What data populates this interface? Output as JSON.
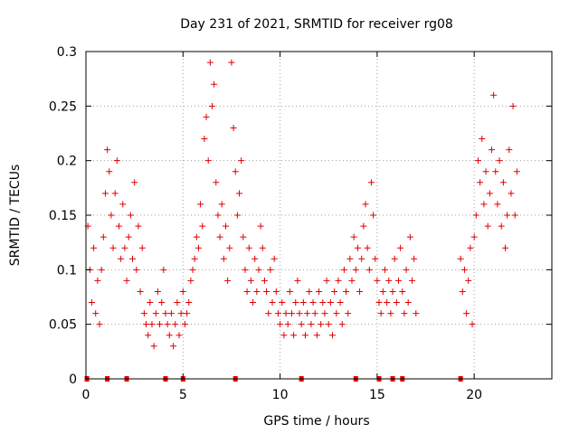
{
  "chart_data": {
    "type": "scatter",
    "title": "Day 231 of 2021, SRMTID for receiver rg08",
    "xlabel": "GPS time / hours",
    "ylabel": "SRMTID / TECUs",
    "xlim": [
      0,
      24
    ],
    "ylim": [
      0,
      0.3
    ],
    "xticks": [
      0,
      5,
      10,
      15,
      20
    ],
    "xtick_labels": [
      "0",
      "5",
      "10",
      "15",
      "20"
    ],
    "yticks": [
      0,
      0.05,
      0.1,
      0.15,
      0.2,
      0.25,
      0.3
    ],
    "ytick_labels": [
      "0",
      "0.05",
      "0.1",
      "0.15",
      "0.2",
      "0.25",
      "0.3"
    ],
    "grid": true,
    "marker": "+",
    "color": "#e00000",
    "baseline_markers_x": [
      0.05,
      1.1,
      2.1,
      4.1,
      5.0,
      7.7,
      11.1,
      13.9,
      15.1,
      15.8,
      16.3,
      19.3
    ],
    "series": [
      {
        "name": "SRMTID",
        "points": [
          [
            0.1,
            0.14
          ],
          [
            0.2,
            0.1
          ],
          [
            0.3,
            0.07
          ],
          [
            0.4,
            0.12
          ],
          [
            0.5,
            0.06
          ],
          [
            0.6,
            0.09
          ],
          [
            0.7,
            0.05
          ],
          [
            0.8,
            0.1
          ],
          [
            0.9,
            0.13
          ],
          [
            1.0,
            0.17
          ],
          [
            1.1,
            0.21
          ],
          [
            1.2,
            0.19
          ],
          [
            1.3,
            0.15
          ],
          [
            1.4,
            0.12
          ],
          [
            1.5,
            0.17
          ],
          [
            1.6,
            0.2
          ],
          [
            1.7,
            0.14
          ],
          [
            1.8,
            0.11
          ],
          [
            1.9,
            0.16
          ],
          [
            2.0,
            0.12
          ],
          [
            2.1,
            0.09
          ],
          [
            2.2,
            0.13
          ],
          [
            2.3,
            0.15
          ],
          [
            2.4,
            0.11
          ],
          [
            2.5,
            0.18
          ],
          [
            2.6,
            0.1
          ],
          [
            2.7,
            0.14
          ],
          [
            2.8,
            0.08
          ],
          [
            2.9,
            0.12
          ],
          [
            3.0,
            0.06
          ],
          [
            3.1,
            0.05
          ],
          [
            3.2,
            0.04
          ],
          [
            3.3,
            0.07
          ],
          [
            3.4,
            0.05
          ],
          [
            3.5,
            0.03
          ],
          [
            3.6,
            0.06
          ],
          [
            3.7,
            0.08
          ],
          [
            3.8,
            0.05
          ],
          [
            3.9,
            0.07
          ],
          [
            4.0,
            0.1
          ],
          [
            4.1,
            0.06
          ],
          [
            4.2,
            0.05
          ],
          [
            4.3,
            0.04
          ],
          [
            4.4,
            0.06
          ],
          [
            4.5,
            0.03
          ],
          [
            4.6,
            0.05
          ],
          [
            4.7,
            0.07
          ],
          [
            4.8,
            0.04
          ],
          [
            4.9,
            0.06
          ],
          [
            5.0,
            0.08
          ],
          [
            5.1,
            0.05
          ],
          [
            5.2,
            0.06
          ],
          [
            5.3,
            0.07
          ],
          [
            5.4,
            0.09
          ],
          [
            5.5,
            0.1
          ],
          [
            5.6,
            0.11
          ],
          [
            5.7,
            0.13
          ],
          [
            5.8,
            0.12
          ],
          [
            5.9,
            0.16
          ],
          [
            6.0,
            0.14
          ],
          [
            6.1,
            0.22
          ],
          [
            6.2,
            0.24
          ],
          [
            6.3,
            0.2
          ],
          [
            6.4,
            0.29
          ],
          [
            6.5,
            0.25
          ],
          [
            6.6,
            0.27
          ],
          [
            6.7,
            0.18
          ],
          [
            6.8,
            0.15
          ],
          [
            6.9,
            0.13
          ],
          [
            7.0,
            0.16
          ],
          [
            7.1,
            0.11
          ],
          [
            7.2,
            0.14
          ],
          [
            7.3,
            0.09
          ],
          [
            7.4,
            0.12
          ],
          [
            7.5,
            0.29
          ],
          [
            7.6,
            0.23
          ],
          [
            7.7,
            0.19
          ],
          [
            7.8,
            0.15
          ],
          [
            7.9,
            0.17
          ],
          [
            8.0,
            0.2
          ],
          [
            8.1,
            0.13
          ],
          [
            8.2,
            0.1
          ],
          [
            8.3,
            0.08
          ],
          [
            8.4,
            0.12
          ],
          [
            8.5,
            0.09
          ],
          [
            8.6,
            0.07
          ],
          [
            8.7,
            0.11
          ],
          [
            8.8,
            0.08
          ],
          [
            8.9,
            0.1
          ],
          [
            9.0,
            0.14
          ],
          [
            9.1,
            0.12
          ],
          [
            9.2,
            0.09
          ],
          [
            9.3,
            0.08
          ],
          [
            9.4,
            0.06
          ],
          [
            9.5,
            0.1
          ],
          [
            9.6,
            0.07
          ],
          [
            9.7,
            0.11
          ],
          [
            9.8,
            0.08
          ],
          [
            9.9,
            0.06
          ],
          [
            10.0,
            0.05
          ],
          [
            10.1,
            0.07
          ],
          [
            10.2,
            0.04
          ],
          [
            10.3,
            0.06
          ],
          [
            10.4,
            0.05
          ],
          [
            10.5,
            0.08
          ],
          [
            10.6,
            0.06
          ],
          [
            10.7,
            0.04
          ],
          [
            10.8,
            0.07
          ],
          [
            10.9,
            0.09
          ],
          [
            11.0,
            0.06
          ],
          [
            11.1,
            0.05
          ],
          [
            11.2,
            0.07
          ],
          [
            11.3,
            0.04
          ],
          [
            11.4,
            0.06
          ],
          [
            11.5,
            0.08
          ],
          [
            11.6,
            0.05
          ],
          [
            11.7,
            0.07
          ],
          [
            11.8,
            0.06
          ],
          [
            11.9,
            0.04
          ],
          [
            12.0,
            0.08
          ],
          [
            12.1,
            0.05
          ],
          [
            12.2,
            0.07
          ],
          [
            12.3,
            0.06
          ],
          [
            12.4,
            0.09
          ],
          [
            12.5,
            0.05
          ],
          [
            12.6,
            0.07
          ],
          [
            12.7,
            0.04
          ],
          [
            12.8,
            0.08
          ],
          [
            12.9,
            0.06
          ],
          [
            13.0,
            0.09
          ],
          [
            13.1,
            0.07
          ],
          [
            13.2,
            0.05
          ],
          [
            13.3,
            0.1
          ],
          [
            13.4,
            0.08
          ],
          [
            13.5,
            0.06
          ],
          [
            13.6,
            0.11
          ],
          [
            13.7,
            0.09
          ],
          [
            13.8,
            0.13
          ],
          [
            13.9,
            0.1
          ],
          [
            14.0,
            0.12
          ],
          [
            14.1,
            0.08
          ],
          [
            14.2,
            0.11
          ],
          [
            14.3,
            0.14
          ],
          [
            14.4,
            0.16
          ],
          [
            14.5,
            0.12
          ],
          [
            14.6,
            0.1
          ],
          [
            14.7,
            0.18
          ],
          [
            14.8,
            0.15
          ],
          [
            14.9,
            0.11
          ],
          [
            15.0,
            0.09
          ],
          [
            15.1,
            0.07
          ],
          [
            15.2,
            0.06
          ],
          [
            15.3,
            0.08
          ],
          [
            15.4,
            0.1
          ],
          [
            15.5,
            0.07
          ],
          [
            15.6,
            0.09
          ],
          [
            15.7,
            0.06
          ],
          [
            15.8,
            0.08
          ],
          [
            15.9,
            0.11
          ],
          [
            16.0,
            0.07
          ],
          [
            16.1,
            0.09
          ],
          [
            16.2,
            0.12
          ],
          [
            16.3,
            0.08
          ],
          [
            16.4,
            0.06
          ],
          [
            16.5,
            0.1
          ],
          [
            16.6,
            0.07
          ],
          [
            16.7,
            0.13
          ],
          [
            16.8,
            0.09
          ],
          [
            16.9,
            0.11
          ],
          [
            17.0,
            0.06
          ],
          [
            19.3,
            0.11
          ],
          [
            19.4,
            0.08
          ],
          [
            19.5,
            0.1
          ],
          [
            19.6,
            0.06
          ],
          [
            19.7,
            0.09
          ],
          [
            19.8,
            0.12
          ],
          [
            19.9,
            0.05
          ],
          [
            20.0,
            0.13
          ],
          [
            20.1,
            0.15
          ],
          [
            20.2,
            0.2
          ],
          [
            20.3,
            0.18
          ],
          [
            20.4,
            0.22
          ],
          [
            20.5,
            0.16
          ],
          [
            20.6,
            0.19
          ],
          [
            20.7,
            0.14
          ],
          [
            20.8,
            0.17
          ],
          [
            20.9,
            0.21
          ],
          [
            21.0,
            0.26
          ],
          [
            21.1,
            0.19
          ],
          [
            21.2,
            0.16
          ],
          [
            21.3,
            0.2
          ],
          [
            21.4,
            0.14
          ],
          [
            21.5,
            0.18
          ],
          [
            21.6,
            0.12
          ],
          [
            21.7,
            0.15
          ],
          [
            21.8,
            0.21
          ],
          [
            21.9,
            0.17
          ],
          [
            22.0,
            0.25
          ],
          [
            22.1,
            0.15
          ],
          [
            22.2,
            0.19
          ]
        ]
      }
    ]
  }
}
